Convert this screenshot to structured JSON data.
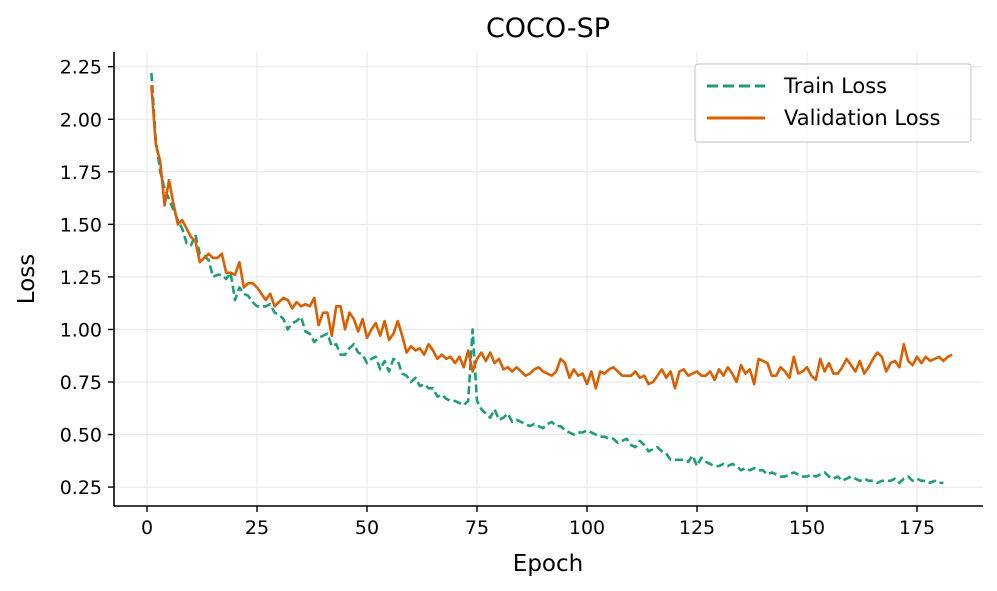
{
  "chart_data": {
    "type": "line",
    "title": "COCO-SP",
    "xlabel": "Epoch",
    "ylabel": "Loss",
    "xlim": [
      -7.5,
      190.0
    ],
    "ylim": [
      0.16,
      2.32
    ],
    "xticks": [
      0,
      25,
      50,
      75,
      100,
      125,
      150,
      175
    ],
    "xtick_labels": [
      "0",
      "25",
      "50",
      "75",
      "100",
      "125",
      "150",
      "175"
    ],
    "yticks": [
      0.25,
      0.5,
      0.75,
      1.0,
      1.25,
      1.5,
      1.75,
      2.0,
      2.25
    ],
    "ytick_labels": [
      "0.25",
      "0.50",
      "0.75",
      "1.00",
      "1.25",
      "1.50",
      "1.75",
      "2.00",
      "2.25"
    ],
    "grid": true,
    "legend_position": "top-right",
    "series": [
      {
        "name": "Train Loss",
        "color": "#1b9e77",
        "style": "dashed",
        "x_start": 1,
        "x_step": 1,
        "values": [
          2.22,
          1.9,
          1.75,
          1.67,
          1.62,
          1.57,
          1.52,
          1.48,
          1.41,
          1.4,
          1.45,
          1.36,
          1.35,
          1.33,
          1.25,
          1.26,
          1.26,
          1.24,
          1.27,
          1.14,
          1.2,
          1.17,
          1.16,
          1.13,
          1.11,
          1.11,
          1.11,
          1.12,
          1.08,
          1.07,
          1.05,
          1.0,
          1.03,
          1.04,
          1.06,
          0.99,
          0.98,
          0.94,
          0.96,
          0.97,
          0.98,
          0.92,
          0.93,
          0.88,
          0.88,
          0.91,
          0.93,
          0.89,
          0.88,
          0.84,
          0.86,
          0.87,
          0.81,
          0.85,
          0.8,
          0.86,
          0.85,
          0.79,
          0.78,
          0.75,
          0.77,
          0.73,
          0.74,
          0.72,
          0.72,
          0.68,
          0.69,
          0.67,
          0.66,
          0.66,
          0.65,
          0.64,
          0.66,
          1.0,
          0.66,
          0.62,
          0.6,
          0.58,
          0.62,
          0.57,
          0.58,
          0.6,
          0.56,
          0.57,
          0.56,
          0.55,
          0.54,
          0.55,
          0.54,
          0.53,
          0.55,
          0.56,
          0.54,
          0.54,
          0.52,
          0.51,
          0.5,
          0.51,
          0.51,
          0.52,
          0.51,
          0.5,
          0.49,
          0.49,
          0.48,
          0.48,
          0.46,
          0.47,
          0.48,
          0.45,
          0.44,
          0.47,
          0.45,
          0.42,
          0.43,
          0.44,
          0.42,
          0.41,
          0.38,
          0.38,
          0.38,
          0.38,
          0.37,
          0.4,
          0.35,
          0.39,
          0.37,
          0.36,
          0.35,
          0.35,
          0.36,
          0.35,
          0.36,
          0.35,
          0.33,
          0.34,
          0.33,
          0.34,
          0.33,
          0.33,
          0.31,
          0.32,
          0.31,
          0.3,
          0.3,
          0.31,
          0.32,
          0.31,
          0.3,
          0.3,
          0.31,
          0.3,
          0.31,
          0.32,
          0.3,
          0.29,
          0.3,
          0.28,
          0.29,
          0.3,
          0.29,
          0.28,
          0.29,
          0.28,
          0.28,
          0.27,
          0.28,
          0.28,
          0.28,
          0.29,
          0.27,
          0.29,
          0.3,
          0.28,
          0.29,
          0.28,
          0.28,
          0.27,
          0.28,
          0.27,
          0.27
        ]
      },
      {
        "name": "Validation Loss",
        "color": "#d95f02",
        "style": "solid",
        "x_start": 1,
        "x_step": 1,
        "values": [
          2.16,
          1.88,
          1.8,
          1.59,
          1.71,
          1.6,
          1.5,
          1.52,
          1.48,
          1.44,
          1.42,
          1.32,
          1.34,
          1.36,
          1.34,
          1.34,
          1.36,
          1.27,
          1.27,
          1.26,
          1.32,
          1.2,
          1.22,
          1.22,
          1.2,
          1.17,
          1.14,
          1.17,
          1.11,
          1.13,
          1.15,
          1.14,
          1.1,
          1.13,
          1.11,
          1.12,
          1.11,
          1.15,
          1.02,
          1.08,
          1.08,
          0.97,
          1.11,
          1.11,
          1.0,
          1.08,
          1.05,
          0.99,
          1.05,
          0.96,
          1.0,
          1.03,
          0.97,
          1.04,
          0.95,
          0.98,
          1.04,
          0.97,
          0.89,
          0.92,
          0.9,
          0.91,
          0.88,
          0.93,
          0.9,
          0.86,
          0.88,
          0.86,
          0.87,
          0.84,
          0.87,
          0.82,
          0.9,
          0.8,
          0.86,
          0.89,
          0.85,
          0.89,
          0.84,
          0.86,
          0.81,
          0.82,
          0.8,
          0.82,
          0.8,
          0.78,
          0.79,
          0.81,
          0.82,
          0.8,
          0.79,
          0.78,
          0.8,
          0.86,
          0.84,
          0.77,
          0.81,
          0.78,
          0.79,
          0.74,
          0.8,
          0.72,
          0.8,
          0.79,
          0.81,
          0.82,
          0.8,
          0.78,
          0.78,
          0.78,
          0.8,
          0.77,
          0.78,
          0.74,
          0.75,
          0.78,
          0.81,
          0.77,
          0.8,
          0.72,
          0.8,
          0.81,
          0.78,
          0.79,
          0.8,
          0.78,
          0.78,
          0.8,
          0.76,
          0.81,
          0.78,
          0.82,
          0.79,
          0.75,
          0.83,
          0.79,
          0.81,
          0.74,
          0.86,
          0.85,
          0.84,
          0.78,
          0.78,
          0.82,
          0.8,
          0.77,
          0.87,
          0.79,
          0.8,
          0.82,
          0.78,
          0.76,
          0.86,
          0.8,
          0.84,
          0.79,
          0.79,
          0.82,
          0.86,
          0.83,
          0.8,
          0.85,
          0.79,
          0.82,
          0.86,
          0.89,
          0.87,
          0.8,
          0.84,
          0.85,
          0.82,
          0.93,
          0.85,
          0.83,
          0.87,
          0.84,
          0.87,
          0.85,
          0.86,
          0.87,
          0.85,
          0.87,
          0.88
        ]
      }
    ]
  }
}
